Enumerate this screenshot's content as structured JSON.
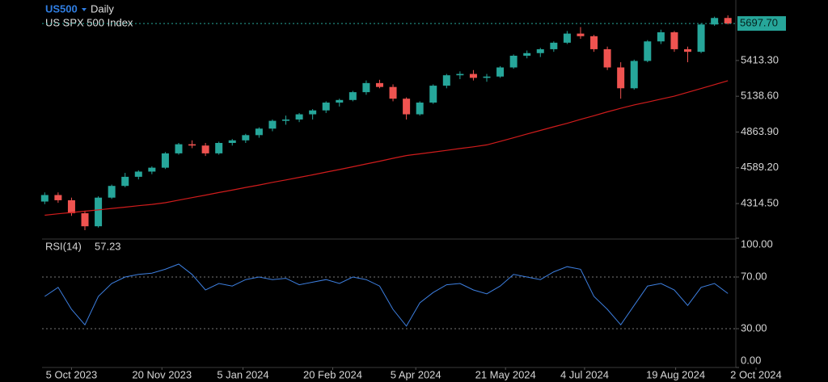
{
  "chart_data": {
    "type": "candlestick",
    "header": {
      "symbol": "US500",
      "interval": "Daily",
      "name": "US SPX 500 Index"
    },
    "categories": [
      null,
      null,
      null,
      null,
      null,
      null,
      null,
      null,
      null,
      null,
      null,
      null,
      null,
      null,
      null,
      null,
      null,
      null,
      null,
      null,
      null,
      null,
      null,
      null,
      null,
      null,
      null,
      null,
      null,
      null,
      null,
      null,
      null,
      null,
      null,
      null,
      null,
      null,
      null,
      null,
      null,
      null,
      null,
      null,
      null,
      null,
      null,
      null,
      null,
      null,
      null,
      null
    ],
    "open": [
      4330,
      4380,
      4340,
      4240,
      4140,
      4360,
      4450,
      4520,
      4560,
      4590,
      4700,
      4770,
      4760,
      4700,
      4780,
      4800,
      4840,
      4890,
      4950,
      4960,
      5000,
      5030,
      5090,
      5110,
      5170,
      5240,
      5210,
      5120,
      5000,
      5090,
      5220,
      5300,
      5310,
      5280,
      5290,
      5360,
      5450,
      5470,
      5500,
      5550,
      5620,
      5600,
      5500,
      5360,
      5200,
      5410,
      5560,
      5630,
      5500,
      5480,
      5690,
      5740
    ],
    "high": [
      4400,
      4400,
      4360,
      4260,
      4370,
      4460,
      4550,
      4570,
      4600,
      4710,
      4780,
      4800,
      4780,
      4790,
      4810,
      4850,
      4900,
      4960,
      4990,
      5010,
      5040,
      5100,
      5120,
      5180,
      5260,
      5265,
      5230,
      5130,
      5100,
      5230,
      5310,
      5330,
      5340,
      5310,
      5370,
      5460,
      5490,
      5510,
      5560,
      5640,
      5670,
      5610,
      5520,
      5400,
      5420,
      5570,
      5650,
      5640,
      5520,
      5700,
      5750,
      5760
    ],
    "low": [
      4310,
      4320,
      4220,
      4110,
      4130,
      4350,
      4440,
      4500,
      4540,
      4580,
      4690,
      4740,
      4680,
      4690,
      4760,
      4780,
      4820,
      4870,
      4920,
      4940,
      4960,
      5010,
      5060,
      5100,
      5150,
      5200,
      5100,
      4960,
      4990,
      5080,
      5200,
      5270,
      5260,
      5250,
      5280,
      5350,
      5430,
      5440,
      5480,
      5540,
      5580,
      5480,
      5340,
      5120,
      5190,
      5400,
      5540,
      5480,
      5400,
      5470,
      5680,
      5690
    ],
    "close": [
      4380,
      4340,
      4240,
      4140,
      4360,
      4450,
      4520,
      4560,
      4590,
      4700,
      4770,
      4760,
      4700,
      4780,
      4800,
      4840,
      4890,
      4950,
      4960,
      5000,
      5030,
      5090,
      5110,
      5170,
      5240,
      5210,
      5120,
      5000,
      5090,
      5220,
      5300,
      5310,
      5280,
      5290,
      5360,
      5450,
      5470,
      5500,
      5550,
      5620,
      5600,
      5500,
      5360,
      5200,
      5410,
      5560,
      5630,
      5500,
      5480,
      5690,
      5740,
      5697.7
    ],
    "up_color": "#26a69a",
    "down_color": "#ef5350",
    "ma": {
      "color": "#d01c1c",
      "values": [
        4225,
        4236,
        4246,
        4256,
        4266,
        4277,
        4287,
        4298,
        4308,
        4321,
        4341,
        4360,
        4379,
        4399,
        4418,
        4438,
        4457,
        4477,
        4496,
        4516,
        4535,
        4556,
        4576,
        4597,
        4619,
        4640,
        4662,
        4683,
        4696,
        4709,
        4723,
        4737,
        4750,
        4765,
        4792,
        4820,
        4849,
        4876,
        4904,
        4931,
        4961,
        4989,
        5019,
        5046,
        5072,
        5094,
        5117,
        5139,
        5169,
        5198,
        5228,
        5258
      ]
    },
    "price_line": {
      "value": 5697.7,
      "label": "5697.70",
      "color": "#26a69a"
    },
    "ylim": [
      4048,
      5878
    ],
    "yticks": [
      {
        "value": 4314.5,
        "label": "4314.50"
      },
      {
        "value": 4589.2,
        "label": "4589.20"
      },
      {
        "value": 4863.9,
        "label": "4863.90"
      },
      {
        "value": 5138.6,
        "label": "5138.60"
      },
      {
        "value": 5413.3,
        "label": "5413.30"
      }
    ],
    "xlim": [
      -0.2,
      51.35
    ],
    "xticks": [
      {
        "value": 2,
        "label": "5 Oct 2023"
      },
      {
        "value": 8.75,
        "label": "20 Nov 2023"
      },
      {
        "value": 14.8,
        "label": "5 Jan 2024"
      },
      {
        "value": 21.5,
        "label": "20 Feb 2024"
      },
      {
        "value": 27.7,
        "label": "5 Apr 2024"
      },
      {
        "value": 34.4,
        "label": "21 May 2024"
      },
      {
        "value": 40.3,
        "label": "4 Jul 2024"
      },
      {
        "value": 47.1,
        "label": "19 Aug 2024"
      },
      {
        "value": 53.1,
        "label": "2 Oct 2024"
      }
    ],
    "rsi": {
      "name": "RSI(14)",
      "color": "#3d7fe0",
      "values": [
        55,
        62,
        45,
        33,
        55,
        65,
        70,
        72,
        73,
        76,
        80,
        72,
        60,
        65,
        63,
        68,
        70,
        68,
        69,
        64,
        66,
        68,
        65,
        70,
        68,
        63,
        45,
        32,
        50,
        58,
        64,
        65,
        60,
        57,
        63,
        72,
        70,
        68,
        74,
        78,
        76,
        55,
        45,
        33,
        48,
        63,
        65,
        60,
        48,
        62,
        65,
        57.23
      ],
      "ylim": [
        0,
        100
      ],
      "yticks": [
        {
          "value": 0,
          "label": "0.00"
        },
        {
          "value": 30,
          "label": "30.00"
        },
        {
          "value": 70,
          "label": "70.00"
        },
        {
          "value": 100,
          "label": "100.00"
        }
      ]
    }
  }
}
